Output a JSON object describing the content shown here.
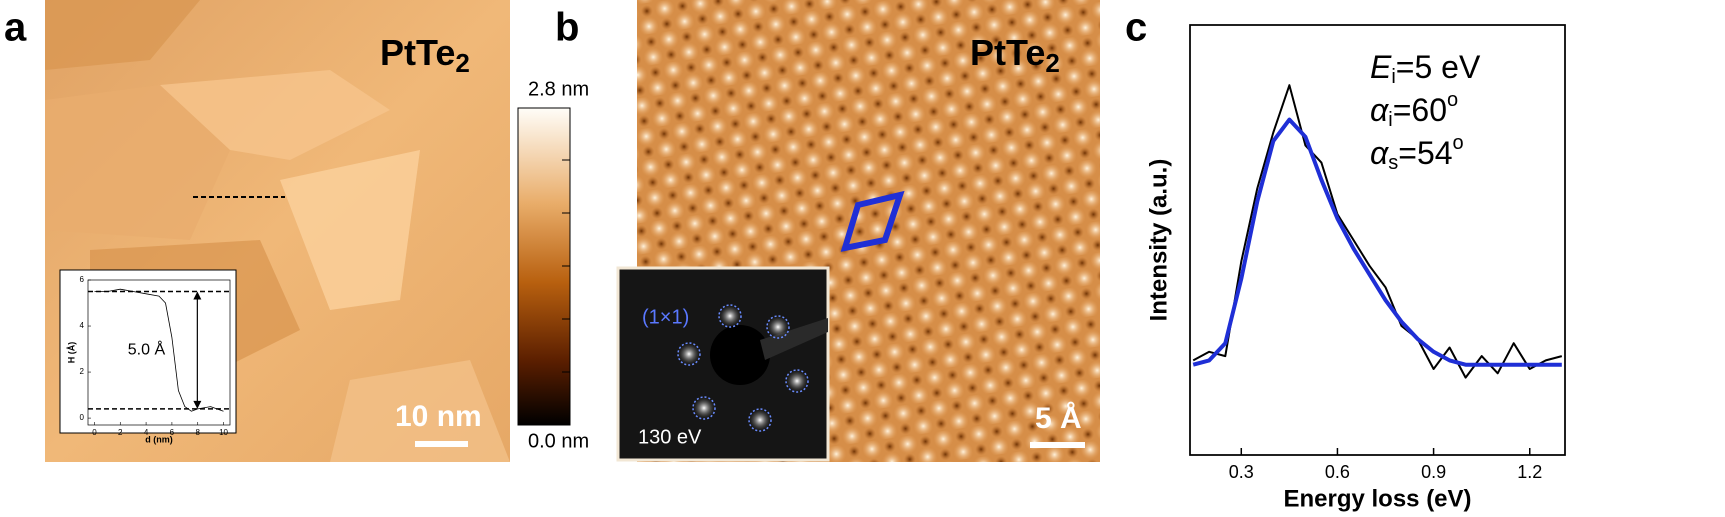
{
  "panels": {
    "a": {
      "label": "a",
      "title": "PtTe",
      "title_sub": "2",
      "scale_bar": "10 nm"
    },
    "colorbar": {
      "max": "2.8 nm",
      "min": "0.0 nm"
    },
    "b": {
      "label": "b",
      "title": "PtTe",
      "title_sub": "2",
      "scale_bar": "5 Å",
      "inset_label": "(1×1)",
      "inset_energy": "130 eV"
    },
    "c": {
      "label": "c"
    }
  },
  "chart_data": [
    {
      "type": "line",
      "xlabel": "d (nm)",
      "ylabel": "H (Å)",
      "annotation": "5.0 Å",
      "x": [
        0,
        1,
        2,
        3,
        4,
        5,
        5.5,
        6,
        6.5,
        7,
        7.5,
        8,
        9,
        10
      ],
      "series": [
        {
          "color": "#000000",
          "values": [
            5.5,
            5.5,
            5.6,
            5.5,
            5.4,
            5.3,
            5.0,
            3.5,
            1.2,
            0.5,
            0.3,
            0.4,
            0.5,
            0.3
          ]
        }
      ],
      "reference_lines": [
        5.5,
        0.4
      ],
      "xlim": [
        -0.5,
        10.5
      ],
      "xticks": [
        0,
        2,
        4,
        6,
        8,
        10
      ],
      "ylim": [
        -0.3,
        6
      ],
      "yticks": [
        0,
        2,
        4,
        6
      ]
    },
    {
      "type": "line",
      "xlabel": "Energy loss (eV)",
      "ylabel": "Intensity (a.u.)",
      "annotations": [
        {
          "symbol": "E",
          "sub": "i",
          "text": "=5 eV"
        },
        {
          "symbol": "α",
          "sub": "i",
          "text": "=60",
          "sup": "o"
        },
        {
          "symbol": "α",
          "sub": "s",
          "text": "=54",
          "sup": "o"
        }
      ],
      "x": [
        0.15,
        0.2,
        0.25,
        0.3,
        0.35,
        0.4,
        0.45,
        0.5,
        0.55,
        0.6,
        0.65,
        0.7,
        0.75,
        0.8,
        0.85,
        0.9,
        0.95,
        1.0,
        1.05,
        1.1,
        1.15,
        1.2,
        1.25,
        1.3
      ],
      "series": [
        {
          "color": "#000000",
          "values": [
            0.22,
            0.24,
            0.23,
            0.45,
            0.62,
            0.75,
            0.86,
            0.72,
            0.68,
            0.56,
            0.5,
            0.44,
            0.39,
            0.3,
            0.27,
            0.2,
            0.25,
            0.18,
            0.23,
            0.19,
            0.26,
            0.2,
            0.22,
            0.23
          ]
        },
        {
          "color": "#1f2fd6",
          "values": [
            0.21,
            0.22,
            0.26,
            0.41,
            0.59,
            0.73,
            0.78,
            0.74,
            0.64,
            0.55,
            0.48,
            0.42,
            0.36,
            0.31,
            0.27,
            0.24,
            0.22,
            0.21,
            0.21,
            0.21,
            0.21,
            0.21,
            0.21,
            0.21
          ]
        }
      ],
      "xlim": [
        0.14,
        1.31
      ],
      "xticks": [
        0.3,
        0.6,
        0.9,
        1.2
      ],
      "ylim": [
        0,
        1
      ]
    }
  ]
}
